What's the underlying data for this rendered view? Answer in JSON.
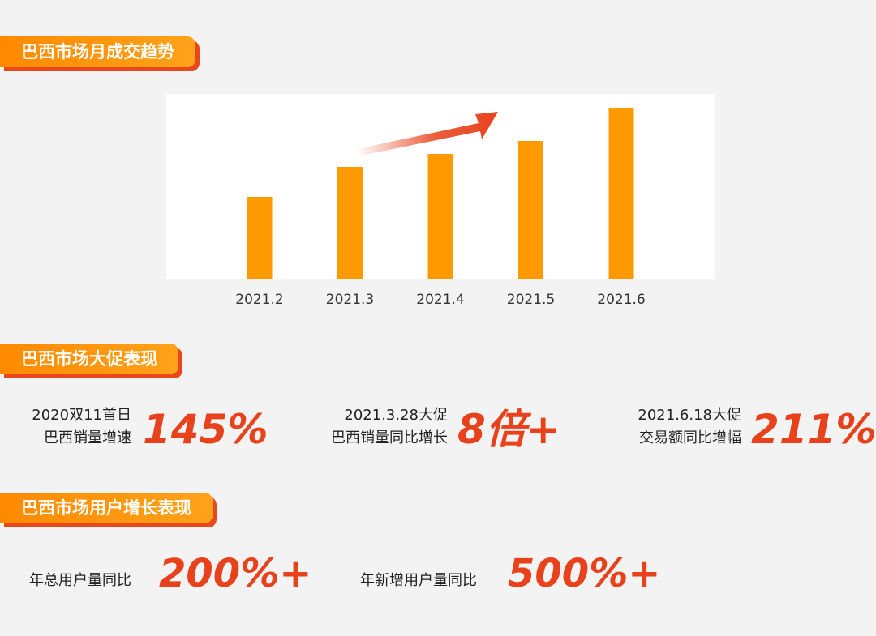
{
  "sections": {
    "trend_title": "巴西市场月成交趋势",
    "promo_title": "巴西市场大促表现",
    "users_title": "巴西市场用户增长表现"
  },
  "chart_data": {
    "type": "bar",
    "categories": [
      "2021.2",
      "2021.3",
      "2021.4",
      "2021.5",
      "2021.6"
    ],
    "values": [
      101,
      138,
      154,
      170,
      211
    ],
    "ylim": [
      0,
      228
    ],
    "bar_color": "#ff9900",
    "arrow_color": "#e8421c",
    "grid": false
  },
  "promo": [
    {
      "label_line1": "2020双11首日",
      "label_line2": "巴西销量增速",
      "value": "145%"
    },
    {
      "label_line1": "2021.3.28大促",
      "label_line2": "巴西销量同比增长",
      "value": "8倍+"
    },
    {
      "label_line1": "2021.6.18大促",
      "label_line2": "交易额同比增幅",
      "value": "211%"
    }
  ],
  "users": [
    {
      "label": "年总用户量同比",
      "value": "200%+"
    },
    {
      "label": "年新增用户量同比",
      "value": "500%+"
    }
  ],
  "colors": {
    "accent": "#e8421c",
    "tag": "#ff9900",
    "background": "#f3f3f3"
  }
}
